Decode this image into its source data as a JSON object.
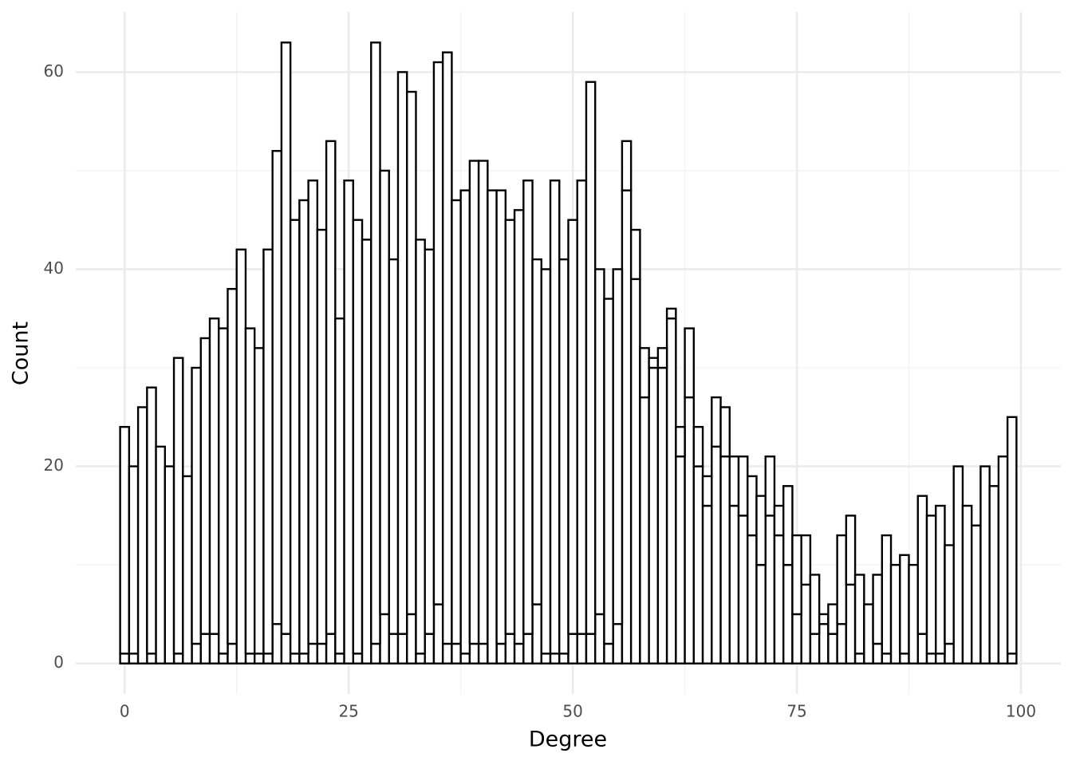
{
  "chart_data": {
    "type": "histogram",
    "x_label": "Degree",
    "y_label": "Count",
    "bins": [
      -0.5,
      0.5,
      1.5,
      2.5,
      3.5,
      4.5,
      5.5,
      6.5,
      7.5,
      8.5,
      9.5,
      10.5,
      11.5,
      12.5,
      13.5,
      14.5,
      15.5,
      16.5,
      17.5,
      18.5,
      19.5,
      20.5,
      21.5,
      22.5,
      23.5,
      24.5,
      25.5,
      26.5,
      27.5,
      28.5,
      29.5,
      30.5,
      31.5,
      32.5,
      33.5,
      34.5,
      35.5,
      36.5,
      37.5,
      38.5,
      39.5,
      40.5,
      41.5,
      42.5,
      43.5,
      44.5,
      45.5,
      46.5,
      47.5,
      48.5,
      49.5,
      50.5,
      51.5,
      52.5,
      53.5,
      54.5,
      55.5,
      56.5,
      57.5,
      58.5,
      59.5,
      60.5,
      61.5,
      62.5,
      63.5,
      64.5,
      65.5,
      66.5,
      67.5,
      68.5,
      69.5,
      70.5,
      71.5,
      72.5,
      73.5,
      74.5,
      75.5,
      76.5,
      77.5,
      78.5,
      79.5,
      80.5,
      81.5,
      82.5,
      83.5,
      84.5,
      85.5,
      86.5,
      87.5,
      88.5,
      89.5,
      90.5,
      91.5,
      92.5,
      93.5,
      94.5,
      95.5,
      96.5,
      97.5,
      98.5,
      99.5
    ],
    "series": [
      {
        "color": "#ffffff",
        "values": [
          1,
          1,
          0,
          1,
          0,
          0,
          1,
          0,
          2,
          3,
          3,
          1,
          2,
          0,
          1,
          1,
          1,
          4,
          3,
          1,
          1,
          2,
          2,
          3,
          1,
          0,
          1,
          0,
          2,
          5,
          3,
          3,
          5,
          1,
          3,
          6,
          2,
          2,
          1,
          2,
          2,
          0,
          2,
          3,
          2,
          3,
          6,
          1,
          1,
          1,
          3,
          3,
          3,
          5,
          2,
          4,
          48,
          39,
          27,
          30,
          30,
          35,
          21,
          27,
          20,
          16,
          22,
          21,
          16,
          15,
          13,
          10,
          15,
          13,
          10,
          5,
          8,
          3,
          4,
          3,
          4,
          8,
          1,
          0,
          2,
          1,
          0,
          1,
          0,
          3,
          1,
          1,
          2,
          0,
          0,
          0,
          0,
          0,
          0,
          1
        ]
      },
      {
        "color": "#ffffff",
        "values": [
          23,
          19,
          26,
          27,
          22,
          20,
          30,
          19,
          28,
          30,
          32,
          33,
          36,
          42,
          33,
          31,
          41,
          48,
          60,
          44,
          46,
          47,
          42,
          50,
          34,
          49,
          44,
          43,
          61,
          45,
          38,
          57,
          53,
          42,
          39,
          55,
          60,
          45,
          47,
          49,
          49,
          48,
          46,
          42,
          44,
          46,
          35,
          39,
          48,
          40,
          42,
          46,
          56,
          35,
          35,
          36,
          5,
          5,
          5,
          1,
          2,
          1,
          3,
          7,
          4,
          3,
          5,
          5,
          5,
          6,
          6,
          7,
          6,
          3,
          8,
          8,
          5,
          6,
          1,
          3,
          9,
          7,
          8,
          6,
          7,
          12,
          10,
          10,
          10,
          14,
          14,
          15,
          10,
          20,
          16,
          14,
          20,
          18,
          21,
          24
        ]
      }
    ],
    "stroke": "#000000",
    "xlim": [
      -5.45,
      104.45
    ],
    "ylim": [
      -3.1,
      66.1
    ],
    "xticks": [
      0,
      25,
      50,
      75,
      100
    ],
    "yticks": [
      0,
      20,
      40,
      60
    ],
    "xminor": [
      12.5,
      37.5,
      62.5,
      87.5
    ],
    "yminor": [
      10,
      30,
      50
    ],
    "grid": true
  }
}
